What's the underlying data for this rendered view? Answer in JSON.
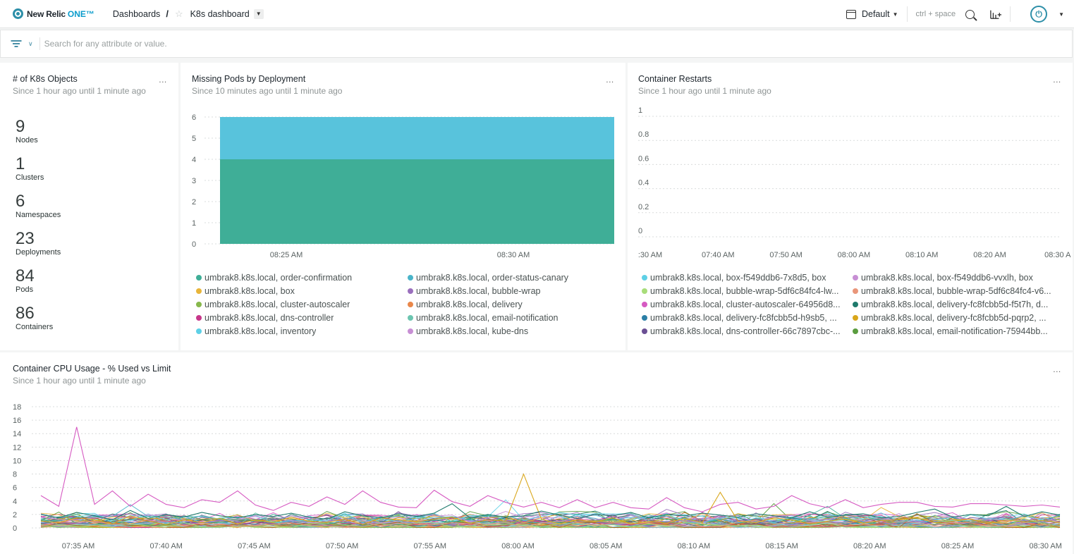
{
  "topbar": {
    "brand": "New Relic",
    "brand_suffix": "ONE™",
    "breadcrumb_root": "Dashboards",
    "breadcrumb_sep": "/",
    "dashboard_name": "K8s dashboard",
    "time_label": "Default",
    "shortcut_hint": "ctrl + space"
  },
  "filter": {
    "placeholder": "Search for any attribute or value."
  },
  "objects": {
    "title": "# of K8s Objects",
    "subtitle": "Since 1 hour ago until 1 minute ago",
    "menu": "...",
    "items": [
      {
        "value": "9",
        "label": "Nodes"
      },
      {
        "value": "1",
        "label": "Clusters"
      },
      {
        "value": "6",
        "label": "Namespaces"
      },
      {
        "value": "23",
        "label": "Deployments"
      },
      {
        "value": "84",
        "label": "Pods"
      },
      {
        "value": "86",
        "label": "Containers"
      }
    ]
  },
  "missing": {
    "title": "Missing Pods by Deployment",
    "subtitle": "Since 10 minutes ago until 1 minute ago",
    "menu": "...",
    "legend": [
      {
        "label": "umbrak8.k8s.local, order-confirmation",
        "color": "#3fae97"
      },
      {
        "label": "umbrak8.k8s.local, order-status-canary",
        "color": "#4ab4c9"
      },
      {
        "label": "umbrak8.k8s.local, box",
        "color": "#e8b53a"
      },
      {
        "label": "umbrak8.k8s.local, bubble-wrap",
        "color": "#9a6fbd"
      },
      {
        "label": "umbrak8.k8s.local, cluster-autoscaler",
        "color": "#87b84c"
      },
      {
        "label": "umbrak8.k8s.local, delivery",
        "color": "#e9874a"
      },
      {
        "label": "umbrak8.k8s.local, dns-controller",
        "color": "#c7378a"
      },
      {
        "label": "umbrak8.k8s.local, email-notification",
        "color": "#6cc5b0"
      },
      {
        "label": "umbrak8.k8s.local, inventory",
        "color": "#5ed0e6"
      },
      {
        "label": "umbrak8.k8s.local, kube-dns",
        "color": "#c78fd4"
      }
    ]
  },
  "restarts": {
    "title": "Container Restarts",
    "subtitle": "Since 1 hour ago until 1 minute ago",
    "menu": "...",
    "legend": [
      {
        "label": "umbrak8.k8s.local, box-f549ddb6-7x8d5, box",
        "color": "#5ed0e6"
      },
      {
        "label": "umbrak8.k8s.local, box-f549ddb6-vvxlh, box",
        "color": "#c78fd4"
      },
      {
        "label": "umbrak8.k8s.local, bubble-wrap-5df6c84fc4-lw...",
        "color": "#a8dd7a"
      },
      {
        "label": "umbrak8.k8s.local, bubble-wrap-5df6c84fc4-v6...",
        "color": "#e9967a"
      },
      {
        "label": "umbrak8.k8s.local, cluster-autoscaler-64956d8...",
        "color": "#d65ac2"
      },
      {
        "label": "umbrak8.k8s.local, delivery-fc8fcbb5d-f5t7h, d...",
        "color": "#1f7a6c"
      },
      {
        "label": "umbrak8.k8s.local, delivery-fc8fcbb5d-h9sb5, ...",
        "color": "#2b7fa6"
      },
      {
        "label": "umbrak8.k8s.local, delivery-fc8fcbb5d-pqrp2, ...",
        "color": "#d9a61a"
      },
      {
        "label": "umbrak8.k8s.local, dns-controller-66c7897cbc-...",
        "color": "#6b4f94"
      },
      {
        "label": "umbrak8.k8s.local, email-notification-75944bb...",
        "color": "#5a9c3e"
      }
    ]
  },
  "cpu": {
    "title": "Container CPU Usage - % Used vs Limit",
    "subtitle": "Since 1 hour ago until 1 minute ago",
    "menu": "..."
  },
  "chart_data": [
    {
      "type": "area",
      "title": "Missing Pods by Deployment",
      "x_ticks": [
        "08:25 AM",
        "08:30 AM"
      ],
      "y_ticks": [
        "0",
        "1",
        "2",
        "3",
        "4",
        "5",
        "6"
      ],
      "ylim": [
        0,
        6
      ],
      "series": [
        {
          "name": "umbrak8.k8s.local, order-confirmation",
          "value": 4,
          "color": "#3fae97"
        },
        {
          "name": "umbrak8.k8s.local, order-status-canary",
          "value": 2,
          "color": "#58c3dc"
        }
      ]
    },
    {
      "type": "line",
      "title": "Container Restarts",
      "x_ticks": [
        ":30 AM",
        "07:40 AM",
        "07:50 AM",
        "08:00 AM",
        "08:10 AM",
        "08:20 AM",
        "08:30 A"
      ],
      "y_ticks": [
        "0",
        "0.2",
        "0.4",
        "0.6",
        "0.8",
        "1"
      ],
      "ylim": [
        0,
        1
      ]
    },
    {
      "type": "line",
      "title": "Container CPU Usage - % Used vs Limit",
      "x_ticks": [
        "07:35 AM",
        "07:40 AM",
        "07:45 AM",
        "07:50 AM",
        "07:55 AM",
        "08:00 AM",
        "08:05 AM",
        "08:10 AM",
        "08:15 AM",
        "08:20 AM",
        "08:25 AM",
        "08:30 AM"
      ],
      "y_ticks": [
        "0",
        "2",
        "4",
        "6",
        "8",
        "10",
        "12",
        "14",
        "16",
        "18"
      ],
      "ylim": [
        0,
        18
      ],
      "highlight_series": [
        {
          "color": "#d65ac2",
          "values": [
            4.8,
            3.2,
            15,
            3.5,
            5.5,
            3.2,
            5,
            3.5,
            3,
            4.2,
            3.8,
            5.5,
            3.4,
            2.6,
            3.8,
            3.2,
            4.6,
            3.5,
            5.5,
            3.8,
            3.1,
            3,
            5.6,
            3.9,
            3.2,
            4.8,
            3.8,
            3.1,
            3.8,
            3,
            4.2,
            3,
            3.8,
            3,
            2.8,
            4.5,
            3,
            2.4,
            3.5,
            3.8,
            2.8,
            3.2,
            4.8,
            3.6,
            3,
            4.2,
            3,
            3.5,
            3.8,
            3.8,
            3.2,
            3.1,
            3.6,
            3.6,
            3.4,
            3.2,
            3.4,
            3.1
          ]
        },
        {
          "color": "#d9a61a",
          "values": [
            1,
            0.8,
            1.5,
            1.2,
            0.6,
            1.8,
            1,
            0.5,
            1.2,
            0.8,
            1.4,
            0.6,
            1.2,
            0.8,
            1.6,
            1,
            0.8,
            1.3,
            0.5,
            1.5,
            1.2,
            0.9,
            1.3,
            1.6,
            0.7,
            1.2,
            1,
            8,
            1.3,
            0.6,
            1.2,
            0.9,
            1.5,
            0.6,
            1,
            0.7,
            1.4,
            0.8,
            5.3,
            1,
            0.8,
            1.5,
            1.2,
            0.6,
            1,
            1.3,
            0.7,
            1.1,
            1.2,
            1.5,
            0.8,
            1,
            1.3,
            0.6,
            1.2,
            0.9,
            1.1,
            0.8
          ]
        },
        {
          "color": "#1f7a6c",
          "values": [
            2,
            1.5,
            2.3,
            1.8,
            1.2,
            2.6,
            1.4,
            2,
            1.6,
            2.3,
            1.8,
            1.5,
            2,
            1.7,
            2.2,
            1.6,
            1.3,
            2.4,
            1.8,
            1.5,
            2.1,
            1.7,
            2.2,
            3.6,
            1.5,
            2,
            1.6,
            1.8,
            2.5,
            1.9,
            1.4,
            2,
            1.8,
            2.3,
            1.5,
            2,
            1.8,
            2.2,
            1.9,
            1.6,
            2.1,
            1.8,
            1.5,
            2.4,
            1.6,
            1.9,
            2.1,
            1.5,
            1.7,
            2.3,
            2.8,
            1.6,
            2,
            1.8,
            3.2,
            1.7,
            2.4,
            1.9
          ]
        }
      ]
    }
  ]
}
